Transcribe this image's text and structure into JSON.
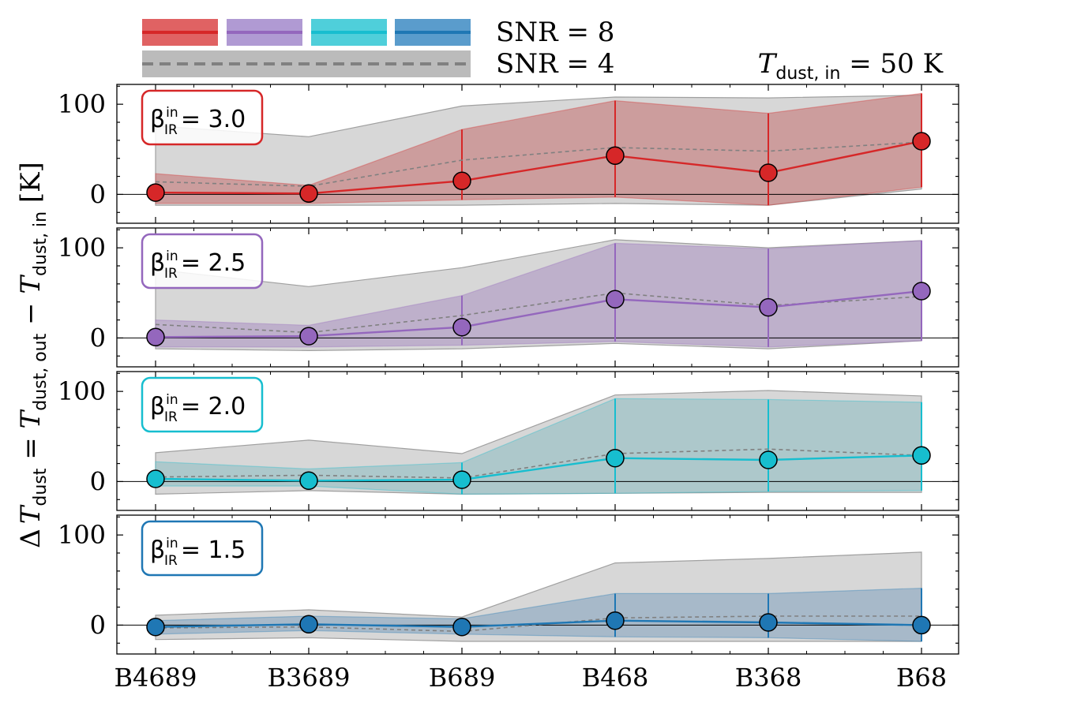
{
  "chart_data": {
    "type": "line",
    "title": "T_dust,in = 50 K",
    "title_parts": {
      "symbol": "T",
      "subscript": "dust, in",
      "equals": " = ",
      "value": "50 K"
    },
    "ylabel_parts": {
      "delta": "Δ",
      "symbol": "T",
      "sub_a": "dust",
      "eq": " = ",
      "sub_b": "dust, out",
      "minus": " − ",
      "sub_c": "dust, in",
      "unit": " [K]"
    },
    "categories": [
      "B4689",
      "B3689",
      "B689",
      "B468",
      "B368",
      "B68"
    ],
    "ylim": [
      -32,
      122
    ],
    "yticks": [
      "0",
      "100"
    ],
    "ytick_values": [
      0,
      100
    ],
    "legend": {
      "snr_high": "SNR = 8",
      "snr_low": "SNR = 4"
    },
    "panels": [
      {
        "beta_symbol": "β",
        "beta_sup": "in",
        "beta_sub": "IR",
        "beta_value": "= 3.0",
        "color": "#d62728",
        "fill": "#c88a8a",
        "snr8": {
          "values": [
            2,
            1,
            15,
            43,
            24,
            59
          ],
          "upper": [
            23,
            10,
            72,
            104,
            90,
            112
          ],
          "lower": [
            -10,
            -10,
            -6,
            -3,
            -12,
            8
          ]
        },
        "snr4": {
          "values": [
            14,
            9,
            38,
            52,
            48,
            58
          ],
          "upper": [
            76,
            64,
            98,
            108,
            107,
            110
          ],
          "lower": [
            -12,
            -12,
            -12,
            -10,
            -12,
            6
          ]
        }
      },
      {
        "beta_symbol": "β",
        "beta_sup": "in",
        "beta_sub": "IR",
        "beta_value": "= 2.5",
        "color": "#9467bd",
        "fill": "#b6a3c7",
        "snr8": {
          "values": [
            1,
            2,
            12,
            43,
            34,
            52
          ],
          "upper": [
            20,
            14,
            47,
            105,
            99,
            108
          ],
          "lower": [
            -10,
            -10,
            -8,
            -4,
            -10,
            -3
          ]
        },
        "snr4": {
          "values": [
            15,
            6,
            25,
            50,
            36,
            46
          ],
          "upper": [
            76,
            57,
            78,
            109,
            100,
            108
          ],
          "lower": [
            -12,
            -14,
            -12,
            -6,
            -12,
            -3
          ]
        }
      },
      {
        "beta_symbol": "β",
        "beta_sup": "in",
        "beta_sub": "IR",
        "beta_value": "= 2.0",
        "color": "#17becf",
        "fill": "#9fc3c7",
        "snr8": {
          "values": [
            3,
            1,
            2,
            26,
            24,
            29
          ],
          "upper": [
            22,
            14,
            21,
            92,
            91,
            88
          ],
          "lower": [
            -5,
            -5,
            -14,
            -13,
            -11,
            -10
          ]
        },
        "snr4": {
          "values": [
            5,
            7,
            4,
            31,
            36,
            29
          ],
          "upper": [
            32,
            46,
            31,
            96,
            101,
            95
          ],
          "lower": [
            -14,
            -10,
            -14,
            -13,
            -12,
            -12
          ]
        }
      },
      {
        "beta_symbol": "β",
        "beta_sup": "in",
        "beta_sub": "IR",
        "beta_value": "= 1.5",
        "color": "#1f77b4",
        "fill": "#97afc4",
        "snr8": {
          "values": [
            -2,
            1,
            -2,
            5,
            3,
            0
          ],
          "upper": [
            5,
            10,
            7,
            35,
            35,
            41
          ],
          "lower": [
            -10,
            -6,
            -10,
            -13,
            -14,
            -18
          ]
        },
        "snr4": {
          "values": [
            -3,
            -2,
            -7,
            8,
            10,
            10
          ],
          "upper": [
            11,
            17,
            9,
            69,
            74,
            81
          ],
          "lower": [
            -16,
            -14,
            -18,
            -18,
            -18,
            -18
          ]
        }
      }
    ]
  }
}
